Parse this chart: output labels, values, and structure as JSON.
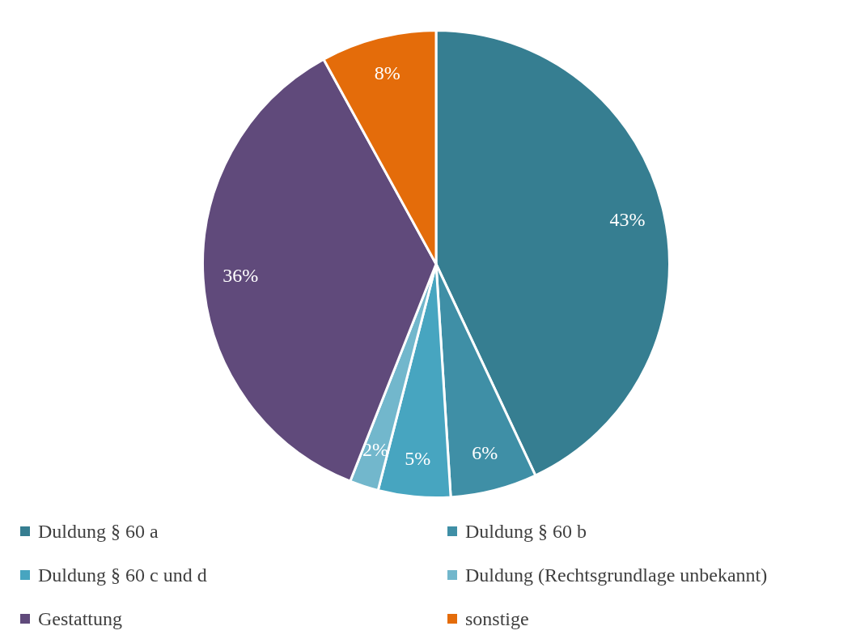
{
  "chart_data": {
    "type": "pie",
    "categories": [
      "Duldung § 60 a",
      "Duldung § 60 b",
      "Duldung § 60 c und d",
      "Duldung (Rechtsgrundlage unbekannt)",
      "Gestattung",
      "sonstige"
    ],
    "values": [
      43,
      6,
      5,
      2,
      36,
      8
    ],
    "colors": [
      "#367e91",
      "#3f8fa6",
      "#47a5c0",
      "#72b7cc",
      "#604a7b",
      "#e46c0a"
    ],
    "value_labels": [
      "43%",
      "6%",
      "5%",
      "2%",
      "36%",
      "8%"
    ],
    "legend": "bottom"
  }
}
